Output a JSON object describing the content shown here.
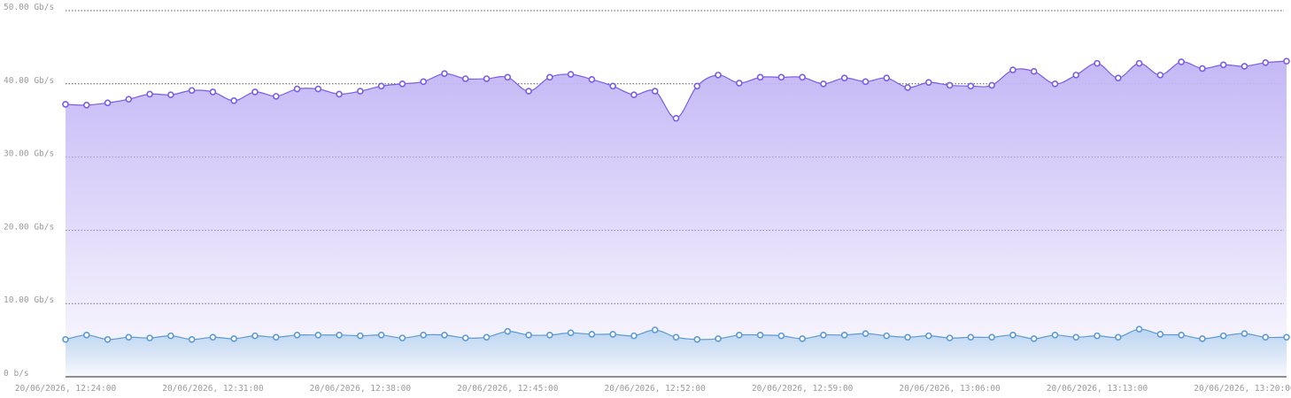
{
  "chart_data": {
    "type": "area",
    "x": [
      "20/06/2026, 12:24:00",
      "20/06/2026, 12:25:00",
      "20/06/2026, 12:26:00",
      "20/06/2026, 12:27:00",
      "20/06/2026, 12:28:00",
      "20/06/2026, 12:29:00",
      "20/06/2026, 12:30:00",
      "20/06/2026, 12:31:00",
      "20/06/2026, 12:32:00",
      "20/06/2026, 12:33:00",
      "20/06/2026, 12:34:00",
      "20/06/2026, 12:35:00",
      "20/06/2026, 12:36:00",
      "20/06/2026, 12:37:00",
      "20/06/2026, 12:38:00",
      "20/06/2026, 12:39:00",
      "20/06/2026, 12:40:00",
      "20/06/2026, 12:41:00",
      "20/06/2026, 12:42:00",
      "20/06/2026, 12:43:00",
      "20/06/2026, 12:44:00",
      "20/06/2026, 12:45:00",
      "20/06/2026, 12:46:00",
      "20/06/2026, 12:47:00",
      "20/06/2026, 12:48:00",
      "20/06/2026, 12:49:00",
      "20/06/2026, 12:50:00",
      "20/06/2026, 12:51:00",
      "20/06/2026, 12:52:00",
      "20/06/2026, 12:53:00",
      "20/06/2026, 12:54:00",
      "20/06/2026, 12:55:00",
      "20/06/2026, 12:56:00",
      "20/06/2026, 12:57:00",
      "20/06/2026, 12:58:00",
      "20/06/2026, 12:59:00",
      "20/06/2026, 13:00:00",
      "20/06/2026, 13:01:00",
      "20/06/2026, 13:02:00",
      "20/06/2026, 13:03:00",
      "20/06/2026, 13:04:00",
      "20/06/2026, 13:05:00",
      "20/06/2026, 13:06:00",
      "20/06/2026, 13:07:00",
      "20/06/2026, 13:08:00",
      "20/06/2026, 13:09:00",
      "20/06/2026, 13:10:00",
      "20/06/2026, 13:11:00",
      "20/06/2026, 13:12:00",
      "20/06/2026, 13:13:00",
      "20/06/2026, 13:14:00",
      "20/06/2026, 13:15:00",
      "20/06/2026, 13:16:00",
      "20/06/2026, 13:17:00",
      "20/06/2026, 13:18:00",
      "20/06/2026, 13:19:00",
      "20/06/2026, 13:20:00",
      "20/06/2026, 13:21:00",
      "20/06/2026, 13:22:00"
    ],
    "series": [
      {
        "color": "#7b5ce8",
        "fill": "#c5b8f6",
        "values": [
          37.2,
          37.1,
          37.4,
          37.9,
          38.6,
          38.5,
          39.1,
          38.9,
          37.7,
          38.9,
          38.3,
          39.3,
          39.3,
          38.6,
          39.0,
          39.7,
          40.0,
          40.3,
          41.4,
          40.7,
          40.7,
          40.9,
          39.0,
          40.9,
          41.3,
          40.6,
          39.7,
          38.5,
          39.0,
          35.3,
          39.7,
          41.2,
          40.1,
          40.9,
          40.9,
          40.9,
          40.0,
          40.8,
          40.3,
          40.8,
          39.5,
          40.2,
          39.8,
          39.7,
          39.8,
          41.9,
          41.7,
          40.0,
          41.2,
          42.8,
          40.8,
          42.8,
          41.2,
          43.0,
          42.1,
          42.6,
          42.4,
          42.9,
          43.1
        ]
      },
      {
        "color": "#5b9bd5",
        "fill": "#bcd6f0",
        "values": [
          5.1,
          5.7,
          5.1,
          5.4,
          5.3,
          5.6,
          5.1,
          5.4,
          5.2,
          5.6,
          5.4,
          5.7,
          5.7,
          5.7,
          5.6,
          5.7,
          5.3,
          5.7,
          5.7,
          5.3,
          5.4,
          6.2,
          5.7,
          5.7,
          6.0,
          5.8,
          5.8,
          5.6,
          6.4,
          5.4,
          5.1,
          5.2,
          5.7,
          5.7,
          5.6,
          5.2,
          5.7,
          5.7,
          5.9,
          5.6,
          5.4,
          5.6,
          5.3,
          5.4,
          5.4,
          5.7,
          5.2,
          5.7,
          5.4,
          5.6,
          5.4,
          6.5,
          5.8,
          5.7,
          5.2,
          5.6,
          5.9,
          5.4,
          5.4
        ]
      }
    ],
    "ylim": [
      0,
      50
    ],
    "yticks": [
      {
        "value": 0,
        "label": "0 b/s"
      },
      {
        "value": 10,
        "label": "10.00 Gb/s"
      },
      {
        "value": 20,
        "label": "20.00 Gb/s"
      },
      {
        "value": 30,
        "label": "30.00 Gb/s"
      },
      {
        "value": 40,
        "label": "40.00 Gb/s"
      },
      {
        "value": 50,
        "label": "50.00 Gb/s"
      }
    ],
    "grid": true
  }
}
